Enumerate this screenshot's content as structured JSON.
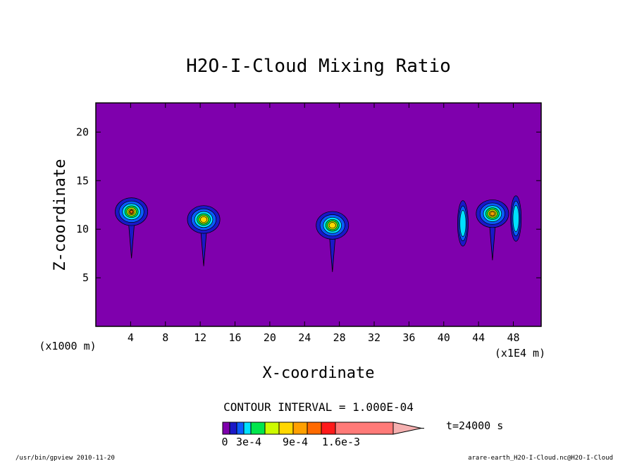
{
  "chart_data": {
    "type": "heatmap",
    "title": "H2O-I-Cloud Mixing Ratio",
    "xlabel": "X-coordinate",
    "ylabel": "Z-coordinate",
    "x_unit_label": "(x1000 m)",
    "x_range_label": "(x1E4 m)",
    "xlim": [
      0,
      51.2
    ],
    "ylim": [
      0,
      23
    ],
    "x_ticks": [
      4,
      8,
      12,
      16,
      20,
      24,
      28,
      32,
      36,
      40,
      44,
      48
    ],
    "y_ticks": [
      5,
      10,
      15,
      20
    ],
    "contour_interval_label": "CONTOUR INTERVAL = 1.000E-04",
    "time_label": "t=24000 s",
    "colorbar_labels": [
      "0",
      "3e-4",
      "9e-4",
      "1.6e-3"
    ],
    "background_color": "#7f00ad",
    "levels": [
      {
        "value": 0.0001,
        "color": "#1a18c8"
      },
      {
        "value": 0.0003,
        "color": "#0a5cff"
      },
      {
        "value": 0.0004,
        "color": "#00e1ff"
      },
      {
        "value": 0.0006,
        "color": "#00e64c"
      },
      {
        "value": 0.0009,
        "color": "#cdfb00"
      },
      {
        "value": 0.0011,
        "color": "#ffd700"
      },
      {
        "value": 0.0013,
        "color": "#ffa000"
      },
      {
        "value": 0.0014,
        "color": "#ff6a00"
      },
      {
        "value": 0.0016,
        "color": "#ff1a1a"
      },
      {
        "value": 0.0019,
        "color": "#ff7a78"
      }
    ],
    "clouds": [
      {
        "x": 4.1,
        "z": 11.8,
        "peak": 0.0014
      },
      {
        "x": 12.4,
        "z": 11.0,
        "peak": 0.0012
      },
      {
        "x": 27.2,
        "z": 10.4,
        "peak": 0.0011
      },
      {
        "x": 42.2,
        "z": 10.6,
        "peak": 0.0004
      },
      {
        "x": 45.6,
        "z": 11.6,
        "peak": 0.0013
      },
      {
        "x": 48.3,
        "z": 11.1,
        "peak": 0.0004
      }
    ],
    "legend": "bottom"
  },
  "footer": {
    "left": "/usr/bin/gpview  2010-11-20",
    "right": "arare-earth_H2O-I-Cloud.nc@H2O-I-Cloud"
  }
}
